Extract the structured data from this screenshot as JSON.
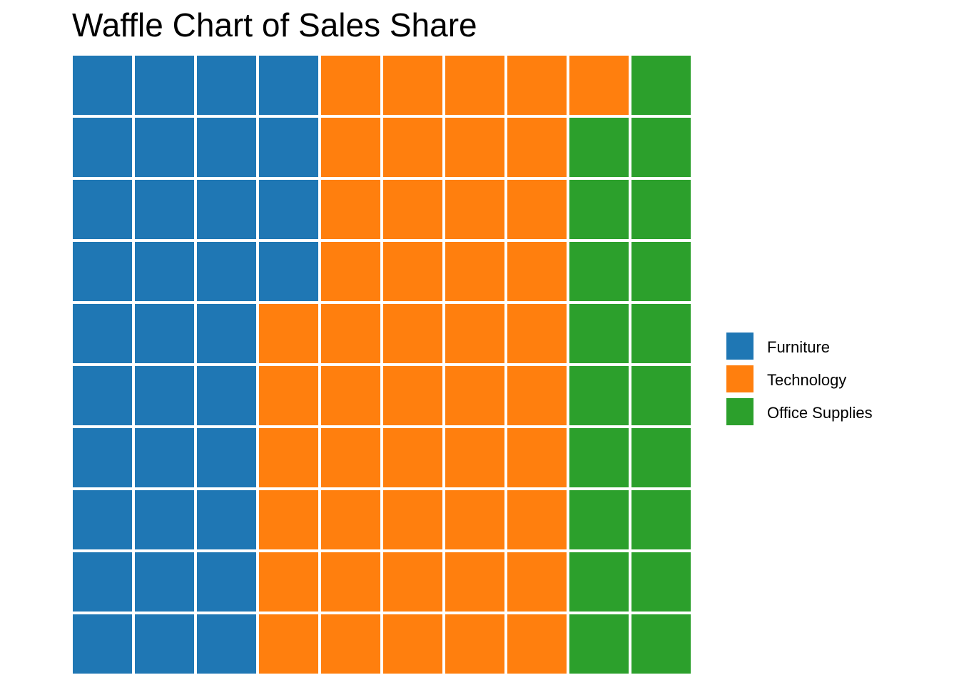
{
  "chart_data": {
    "type": "waffle",
    "title": "Waffle Chart of Sales Share",
    "grid": {
      "rows": 10,
      "cols": 10
    },
    "fill_order": "column-major from top-left",
    "categories": [
      {
        "name": "Furniture",
        "squares": 34,
        "color": "#1f77b4"
      },
      {
        "name": "Technology",
        "squares": 47,
        "color": "#ff7f0e"
      },
      {
        "name": "Office Supplies",
        "squares": 19,
        "color": "#2ca02c"
      }
    ],
    "legend_position": "right"
  }
}
